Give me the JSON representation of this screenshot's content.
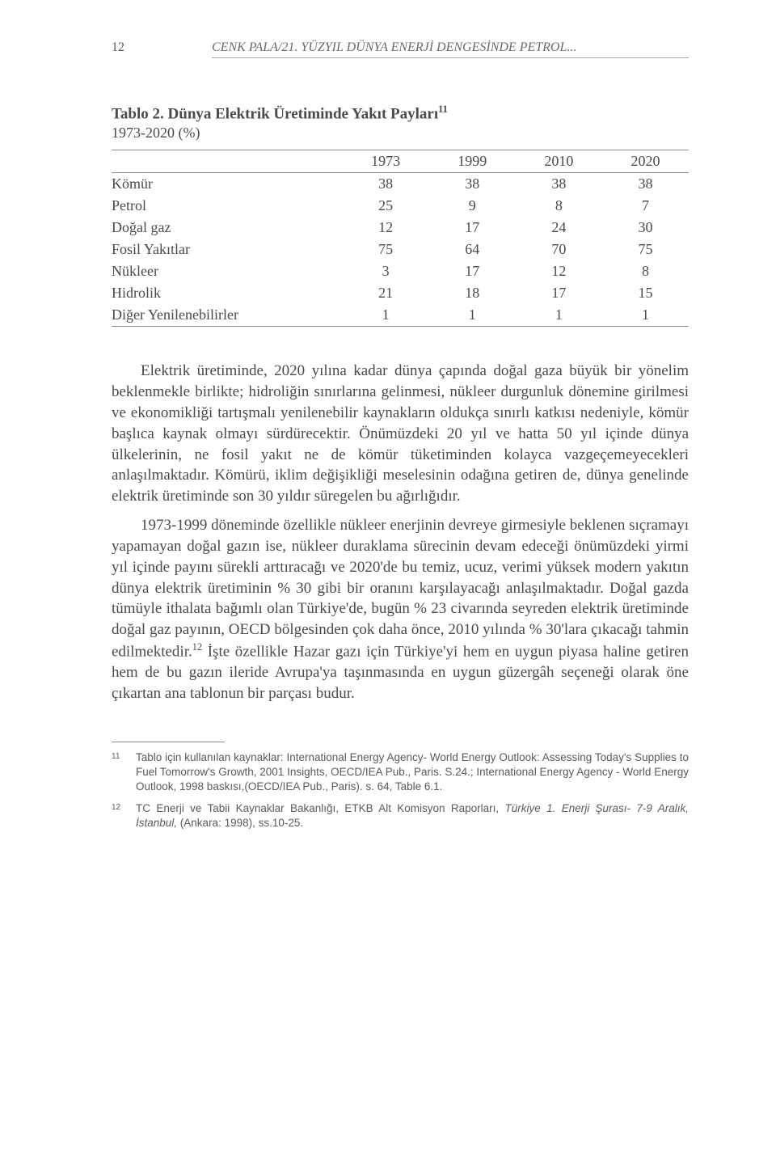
{
  "header": {
    "page_number": "12",
    "running_title": "CENK PALA/21. YÜZYIL DÜNYA ENERJİ DENGESİNDE PETROL..."
  },
  "table": {
    "title_prefix": "Tablo 2. Dünya Elektrik Üretiminde Yakıt Payları",
    "title_sup": "11",
    "subtitle": "1973-2020 (%)",
    "columns": [
      "",
      "1973",
      "1999",
      "2010",
      "2020"
    ],
    "rows": [
      {
        "label": "Kömür",
        "vals": [
          "38",
          "38",
          "38",
          "38"
        ]
      },
      {
        "label": "Petrol",
        "vals": [
          "25",
          "9",
          "8",
          "7"
        ]
      },
      {
        "label": "Doğal gaz",
        "vals": [
          "12",
          "17",
          "24",
          "30"
        ]
      },
      {
        "label": "Fosil Yakıtlar",
        "vals": [
          "75",
          "64",
          "70",
          "75"
        ]
      },
      {
        "label": "Nükleer",
        "vals": [
          "3",
          "17",
          "12",
          "8"
        ]
      },
      {
        "label": "Hidrolik",
        "vals": [
          "21",
          "18",
          "17",
          "15"
        ]
      },
      {
        "label": "Diğer Yenilenebilirler",
        "vals": [
          "1",
          "1",
          "1",
          "1"
        ]
      }
    ]
  },
  "paragraphs": {
    "p1": "Elektrik üretiminde, 2020 yılına kadar dünya çapında doğal gaza büyük bir yönelim beklenmekle birlikte; hidroliğin sınırlarına gelinmesi, nükleer durgunluk dönemine girilmesi ve ekonomikliği tartışmalı yenilenebilir kaynakların oldukça sınırlı katkısı nedeniyle, kömür başlıca kaynak olmayı sürdürecektir. Önümüzdeki 20 yıl ve hatta 50 yıl içinde dünya ülkelerinin, ne fosil yakıt ne de kömür tüketiminden kolayca vazgeçemeyecekleri anlaşılmaktadır. Kömürü, iklim değişikliği meselesinin odağına getiren de, dünya genelinde elektrik üretiminde son 30 yıldır süregelen bu ağırlığıdır.",
    "p2_before_sup": "1973-1999 döneminde özellikle nükleer enerjinin devreye girme­siyle beklenen sıçramayı yapamayan doğal gazın ise, nükleer durakla­ma sürecinin devam edeceği önümüzdeki yirmi yıl içinde payını sürek­li arttıracağı ve 2020'de bu temiz, ucuz, verimi yüksek modern yakıtın dünya elektrik üretiminin % 30 gibi bir oranını karşılayacağı anlaşılmak­tadır. Doğal gazda tümüyle ithalata bağımlı olan Türkiye'de, bugün % 23 civarında seyreden elektrik üretiminde doğal gaz payının, OECD böl­gesinden çok daha önce, 2010 yılında % 30'lara çıkacağı tahmin edilmektedir.",
    "p2_sup": "12",
    "p2_after_sup": " İşte özellikle Hazar gazı için Türkiye'yi hem en uygun piyasa haline getiren hem de bu gazın ileride Avrupa'ya taşınmasında en uygun güzergâh seçeneği olarak öne çıkartan ana tablonun bir parçası budur."
  },
  "footnotes": {
    "f11": {
      "num": "11",
      "text": "Tablo için kullanılan kaynaklar: International Energy Agency- World Energy Outlook: Assessing Today's Supplies to Fuel Tomorrow's Growth, 2001 Insights, OECD/IEA Pub., Paris. S.24.; International Energy Agency - World Energy Outlook, 1998 baskısı,(OECD/IEA Pub., Paris). s. 64, Table 6.1."
    },
    "f12": {
      "num": "12",
      "text_before_italic": "TC Enerji ve Tabii Kaynaklar Bakanlığı, ETKB Alt Komisyon Raporları, ",
      "text_italic": "Türkiye 1. Enerji Şurası- 7-9 Aralık, İstanbul,",
      "text_after_italic": " (Ankara: 1998), ss.10-25."
    }
  }
}
